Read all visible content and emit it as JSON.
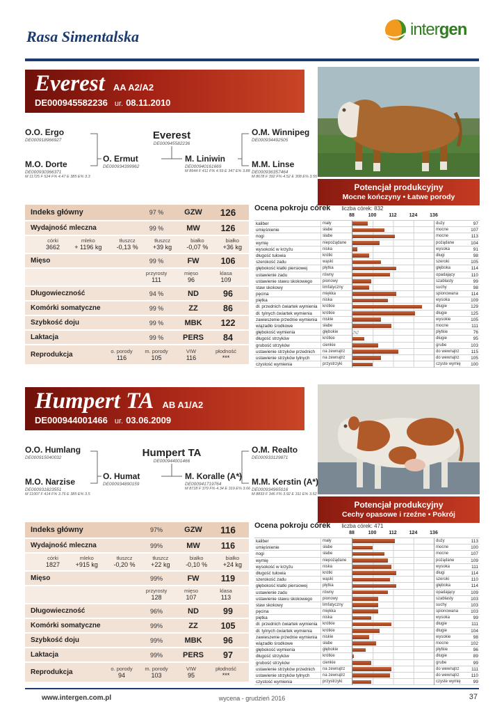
{
  "page": {
    "breed_title": "Rasa Simentalska",
    "logo": {
      "part1": "inter",
      "part2": "gen"
    },
    "footer": {
      "website": "www.intergen.com.pl",
      "issue": "wycena - grudzień 2016",
      "page_number": "37"
    }
  },
  "bulls": [
    {
      "name": "Everest",
      "genotype": "AA  A2/A2",
      "id": "DE000945582236",
      "birth_label": "ur.",
      "birth_date": "08.11.2010",
      "badge_title": "Potencjał produkcyjny",
      "badge_subtitle": "Mocne kończyny • Łatwe porody",
      "pedigree": {
        "oo": {
          "label": "O.O.",
          "name": "Ergo",
          "id": "DE000918966927"
        },
        "mo": {
          "label": "M.O.",
          "name": "Dorte",
          "id": "DE000930366371",
          "stats": "M 11725  F 524  F% 4.47  E 385  E% 3.3"
        },
        "self": {
          "name": "Everest",
          "id": "DE000945582236"
        },
        "sire": {
          "label": "O.",
          "name": "Ermut",
          "id": "DE000934399962"
        },
        "dam": {
          "label": "M.",
          "name": "Liniwin",
          "id": "DE000940161669",
          "stats": "M 8944  F 411  F% 4.59  E 347  E% 3.88"
        },
        "om": {
          "label": "O.M.",
          "name": "Winnipeg",
          "id": "DE000934492505"
        },
        "mm": {
          "label": "M.M.",
          "name": "Linse",
          "id": "DE000936357464",
          "stats": "M 8678  F 392  F% 4.52  E 308  E% 3.55"
        }
      },
      "index": {
        "header": {
          "label": "Indeks główny",
          "rel": "97 %",
          "code": "GZW",
          "value": "126"
        },
        "rows": [
          {
            "type": "main",
            "label": "Wydajność mleczna",
            "rel": "99 %",
            "code": "MW",
            "value": "126"
          },
          {
            "type": "sub",
            "cells": [
              {
                "t": "córki",
                "v": "3662"
              },
              {
                "t": "mleko",
                "v": "+ 1196  kg"
              },
              {
                "t": "tłuszcz",
                "v": "-0,13 %"
              },
              {
                "t": "tłuszcz",
                "v": "+39 kg"
              },
              {
                "t": "białko",
                "v": "-0,07 %"
              },
              {
                "t": "białko",
                "v": "+36 kg"
              }
            ]
          },
          {
            "type": "main",
            "label": "Mięso",
            "rel": "99 %",
            "code": "FW",
            "value": "106"
          },
          {
            "type": "sub",
            "cells": [
              {
                "t": "przyrosty",
                "v": "111"
              },
              {
                "t": "mięso",
                "v": "96"
              },
              {
                "t": "klasa",
                "v": "109"
              }
            ]
          },
          {
            "type": "main",
            "label": "Długowieczność",
            "rel": "94 %",
            "code": "ND",
            "value": "96"
          },
          {
            "type": "main",
            "label": "Komórki somatyczne",
            "rel": "99 %",
            "code": "ZZ",
            "value": "86"
          },
          {
            "type": "main",
            "label": "Szybkość doju",
            "rel": "99 %",
            "code": "MBK",
            "value": "122"
          },
          {
            "type": "main",
            "label": "Laktacja",
            "rel": "99 %",
            "code": "PERS",
            "value": "84"
          },
          {
            "type": "repro",
            "label": "Reprodukcja",
            "cells": [
              {
                "t": "o. porody",
                "v": "116"
              },
              {
                "t": "m. porody",
                "v": "105"
              },
              {
                "t": "VIW",
                "v": "116"
              },
              {
                "t": "płodność",
                "v": "***"
              }
            ]
          }
        ]
      },
      "chart": {
        "title": "Ocena pokroju córek",
        "daughters": "liczba córek: 832",
        "scale": [
          "88",
          "100",
          "112",
          "124",
          "136"
        ],
        "min": 88,
        "max": 136,
        "rows": [
          {
            "trait": "kaliber",
            "low": "mały",
            "high": "duży",
            "value": 97
          },
          {
            "trait": "umięśnienie",
            "low": "słabe",
            "high": "mocne",
            "value": 107
          },
          {
            "trait": "nogi",
            "low": "słabe",
            "high": "mocne",
            "value": 113
          },
          {
            "trait": "wymię",
            "low": "niepożądane",
            "high": "pożądane",
            "value": 104
          },
          {
            "trait": "wysokość w krzyżu",
            "low": "niska",
            "high": "wysoka",
            "value": 91
          },
          {
            "trait": "długość tułowia",
            "low": "krótki",
            "high": "długi",
            "value": 98
          },
          {
            "trait": "szerokość zadu",
            "low": "wąski",
            "high": "szeroki",
            "value": 105
          },
          {
            "trait": "głębokość klatki piersiowej",
            "low": "płytka",
            "high": "głęboka",
            "value": 114
          },
          {
            "trait": "ustawienie zadu",
            "low": "równy",
            "high": "opadający",
            "value": 110
          },
          {
            "trait": "ustawienie stawu skokowego",
            "low": "pionowy",
            "high": "szablasty",
            "value": 99
          },
          {
            "trait": "staw skokowy",
            "low": "limfatyczny",
            "high": "suchy",
            "value": 98
          },
          {
            "trait": "pęcina",
            "low": "miękka",
            "high": "spionowana",
            "value": 114
          },
          {
            "trait": "piętka",
            "low": "niska",
            "high": "wysoka",
            "value": 109
          },
          {
            "trait": "dł. przednich ćwiartek wymienia",
            "low": "krótkie",
            "high": "długie",
            "value": 129
          },
          {
            "trait": "dł. tylnych ćwiartek wymienia",
            "low": "krótkie",
            "high": "długie",
            "value": 125
          },
          {
            "trait": "zawieszenie przednie wymienia",
            "low": "niskie",
            "high": "wysokie",
            "value": 105
          },
          {
            "trait": "wiązadło środkowe",
            "low": "słabe",
            "high": "mocne",
            "value": 111
          },
          {
            "trait": "głębokość wymienia",
            "low": "głębokie",
            "high": "płytkie",
            "value": 76
          },
          {
            "trait": "długość strzyków",
            "low": "krótkie",
            "high": "długie",
            "value": 95
          },
          {
            "trait": "grubość strzyków",
            "low": "cienkie",
            "high": "grube",
            "value": 103
          },
          {
            "trait": "ustawienie strzyków przednich",
            "low": "na zewnątrz",
            "high": "do wewnątrz",
            "value": 115
          },
          {
            "trait": "ustawienie strzyków tylnych",
            "low": "na zewnątrz",
            "high": "do wewnątrz",
            "value": 105
          },
          {
            "trait": "czystość wymienia",
            "low": "przystrzyki",
            "high": "czyste wymię",
            "value": 100
          }
        ]
      }
    },
    {
      "name": "Humpert TA",
      "genotype": "AB  A1/A2",
      "id": "DE000944001466",
      "birth_label": "ur.",
      "birth_date": "03.06.2009",
      "badge_title": "Potencjał produkcyjny",
      "badge_subtitle": "Cechy opasowe i rzeźne • Pokrój",
      "pedigree": {
        "oo": {
          "label": "O.O.",
          "name": "Humlang",
          "id": "DE000915040032"
        },
        "mo": {
          "label": "M.O.",
          "name": "Narzise",
          "id": "DE000931823551",
          "stats": "M 11007  F 414  F% 3.76  E 385  E% 3.5"
        },
        "self": {
          "name": "Humpert TA",
          "id": "DE000944001466"
        },
        "sire": {
          "label": "O.",
          "name": "Humat",
          "id": "DE000934890159"
        },
        "dam": {
          "label": "M.",
          "name": "Koralle (A*)",
          "id": "DE000941719764",
          "stats": "M 8718  F 379  F% 4.34  E 319  E% 3.66"
        },
        "om": {
          "label": "O.M.",
          "name": "Realto",
          "id": "DE000933129871"
        },
        "mm": {
          "label": "M.M.",
          "name": "Kerstin (A*)",
          "id": "DE000934965016",
          "stats": "M 8833  F 346  F% 3.92  E 311  E% 3.52"
        }
      },
      "index": {
        "header": {
          "label": "Indeks główny",
          "rel": "97%",
          "code": "GZW",
          "value": "116"
        },
        "rows": [
          {
            "type": "main",
            "label": "Wydajność mleczna",
            "rel": "99%",
            "code": "MW",
            "value": "116"
          },
          {
            "type": "sub",
            "cells": [
              {
                "t": "córki",
                "v": "1827"
              },
              {
                "t": "mleko",
                "v": "+915 kg"
              },
              {
                "t": "tłuszcz",
                "v": "-0,20  %"
              },
              {
                "t": "tłuszcz",
                "v": "+22 kg"
              },
              {
                "t": "białko",
                "v": "-0,10  %"
              },
              {
                "t": "białko",
                "v": "+24 kg"
              }
            ]
          },
          {
            "type": "main",
            "label": "Mięso",
            "rel": "99%",
            "code": "FW",
            "value": "119"
          },
          {
            "type": "sub",
            "cells": [
              {
                "t": "przyrosty",
                "v": "128"
              },
              {
                "t": "mięso",
                "v": "107"
              },
              {
                "t": "klasa",
                "v": "113"
              }
            ]
          },
          {
            "type": "main",
            "label": "Długowieczność",
            "rel": "96%",
            "code": "ND",
            "value": "99"
          },
          {
            "type": "main",
            "label": "Komórki somatyczne",
            "rel": "99%",
            "code": "ZZ",
            "value": "105"
          },
          {
            "type": "main",
            "label": "Szybkość doju",
            "rel": "99%",
            "code": "MBK",
            "value": "96"
          },
          {
            "type": "main",
            "label": "Laktacja",
            "rel": "99%",
            "code": "PERS",
            "value": "97"
          },
          {
            "type": "repro",
            "label": "Reprodukcja",
            "cells": [
              {
                "t": "o. porody",
                "v": "94"
              },
              {
                "t": "m. porody",
                "v": "103"
              },
              {
                "t": "VIW",
                "v": "95"
              },
              {
                "t": "płodność",
                "v": "***"
              }
            ]
          }
        ]
      },
      "chart": {
        "title": "Ocena pokroju córek",
        "daughters": "liczba córek: 471",
        "scale": [
          "88",
          "100",
          "112",
          "124",
          "136"
        ],
        "min": 88,
        "max": 136,
        "rows": [
          {
            "trait": "kaliber",
            "low": "mały",
            "high": "duży",
            "value": 113
          },
          {
            "trait": "umięśnienie",
            "low": "słabe",
            "high": "mocne",
            "value": 100
          },
          {
            "trait": "nogi",
            "low": "słabe",
            "high": "mocne",
            "value": 107
          },
          {
            "trait": "wymię",
            "low": "niepożądane",
            "high": "pożądane",
            "value": 109
          },
          {
            "trait": "wysokość w krzyżu",
            "low": "niska",
            "high": "wysoka",
            "value": 111
          },
          {
            "trait": "długość tułowia",
            "low": "krótki",
            "high": "długi",
            "value": 114
          },
          {
            "trait": "szerokość zadu",
            "low": "wąski",
            "high": "szeroki",
            "value": 110
          },
          {
            "trait": "głębokość klatki piersiowej",
            "low": "płytka",
            "high": "głęboka",
            "value": 114
          },
          {
            "trait": "ustawienie zadu",
            "low": "równy",
            "high": "opadający",
            "value": 109
          },
          {
            "trait": "ustawienie stawu skokowego",
            "low": "pionowy",
            "high": "szablasty",
            "value": 103
          },
          {
            "trait": "staw skokowy",
            "low": "limfatyczny",
            "high": "suchy",
            "value": 103
          },
          {
            "trait": "pęcina",
            "low": "miękka",
            "high": "spionowana",
            "value": 103
          },
          {
            "trait": "piętka",
            "low": "niska",
            "high": "wysoka",
            "value": 99
          },
          {
            "trait": "dł. przednich ćwiartek wymienia",
            "low": "krótkie",
            "high": "długie",
            "value": 111
          },
          {
            "trait": "dł. tylnych ćwiartek wymienia",
            "low": "krótkie",
            "high": "długie",
            "value": 104
          },
          {
            "trait": "zawieszenie przednie wymienia",
            "low": "niskie",
            "high": "wysokie",
            "value": 98
          },
          {
            "trait": "wiązadło środkowe",
            "low": "słabe",
            "high": "mocne",
            "value": 102
          },
          {
            "trait": "głębokość wymienia",
            "low": "głębokie",
            "high": "płytkie",
            "value": 96
          },
          {
            "trait": "długość strzyków",
            "low": "krótkie",
            "high": "długie",
            "value": 89
          },
          {
            "trait": "grubość strzyków",
            "low": "cienkie",
            "high": "grube",
            "value": 99
          },
          {
            "trait": "ustawienie strzyków przednich",
            "low": "na zewnątrz",
            "high": "do wewnątrz",
            "value": 111
          },
          {
            "trait": "ustawienie strzyków tylnych",
            "low": "na zewnątrz",
            "high": "do wewnątrz",
            "value": 110
          },
          {
            "trait": "czystość wymienia",
            "low": "przystrzyki",
            "high": "czyste wymię",
            "value": 99
          }
        ]
      }
    }
  ]
}
